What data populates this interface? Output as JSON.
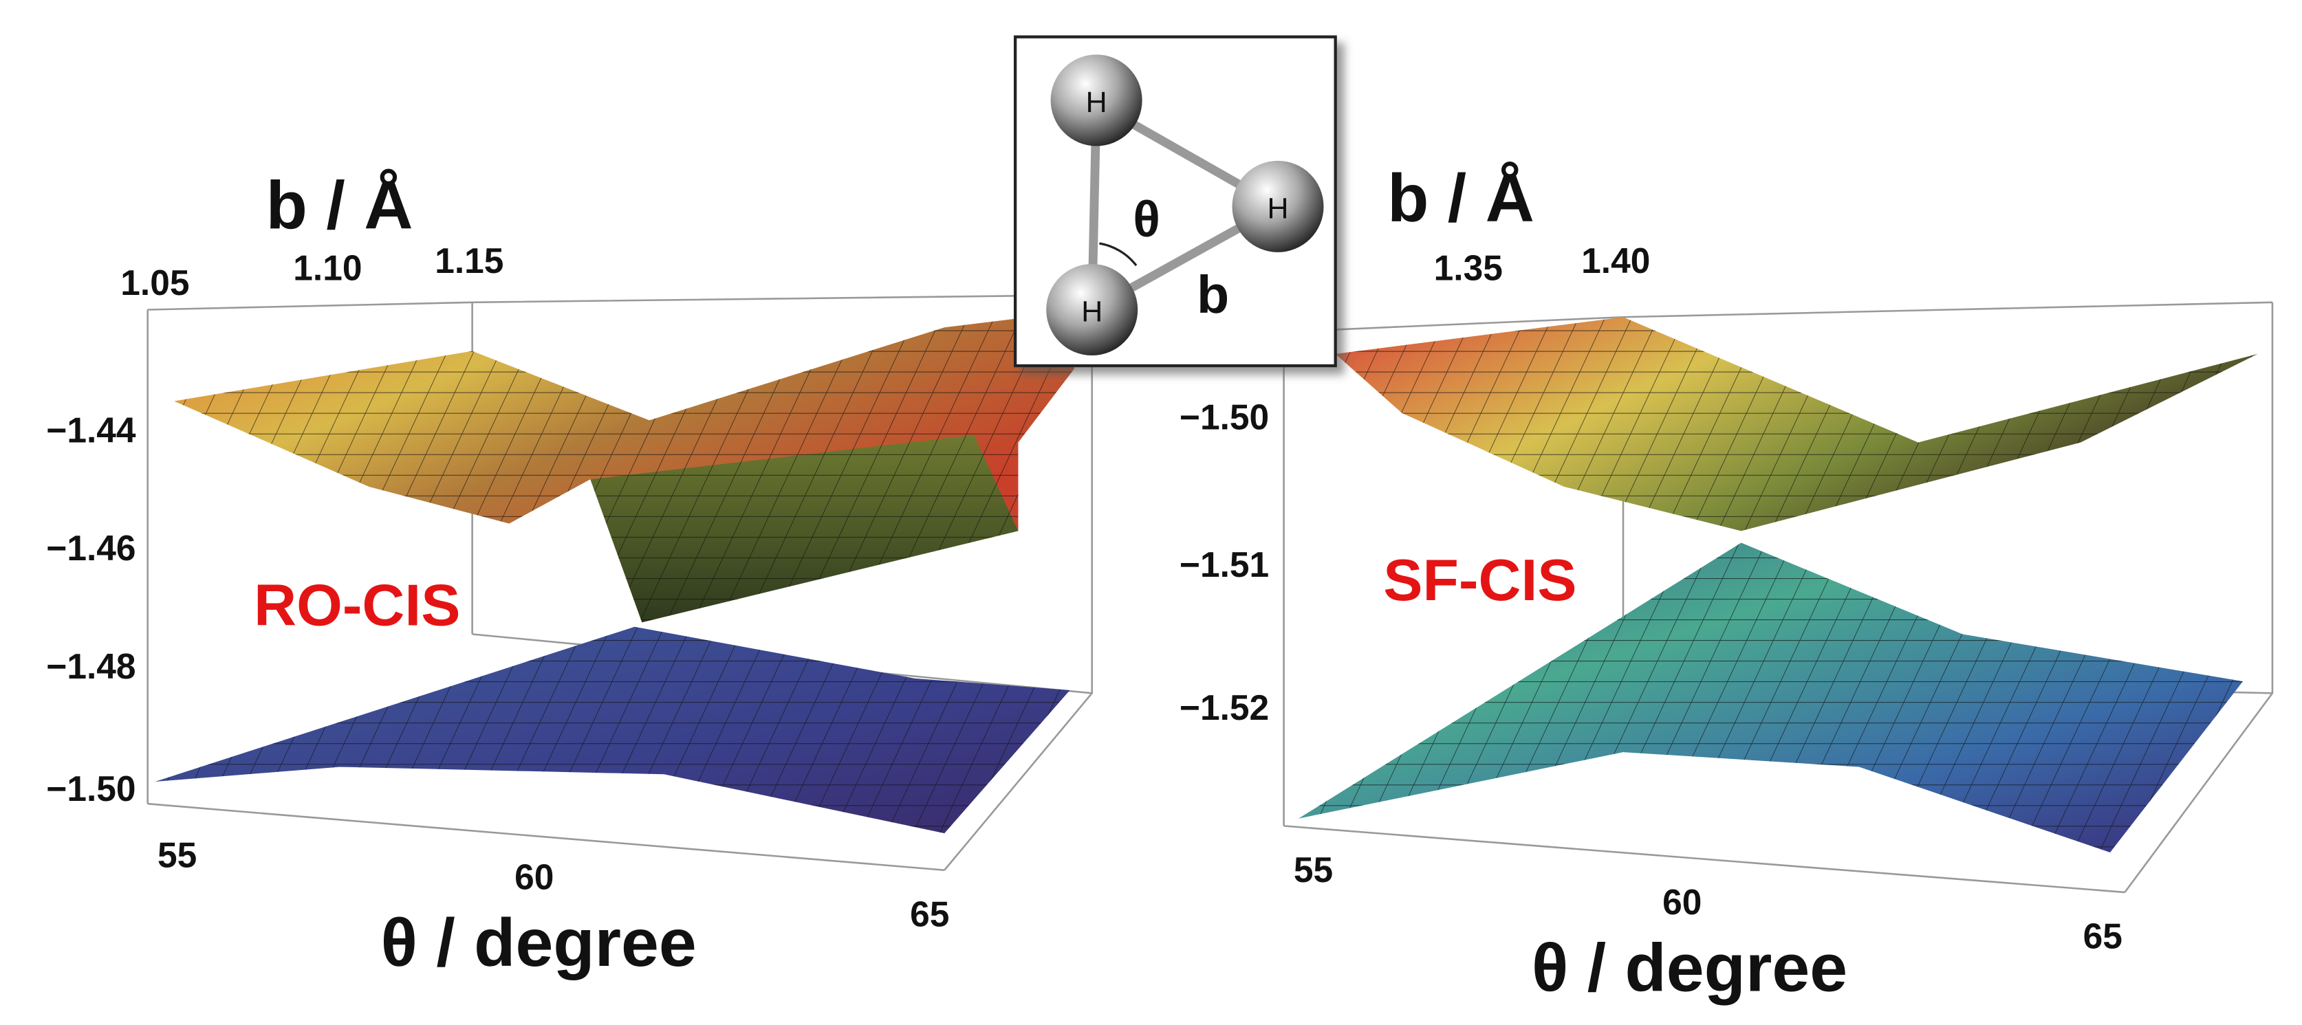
{
  "panels": [
    {
      "method": "RO-CIS",
      "b_axis": {
        "title": "b / Å",
        "ticks": [
          "1.05",
          "1.10",
          "1.15"
        ]
      },
      "energy_ticks": [
        "−1.44",
        "−1.46",
        "−1.48",
        "−1.50"
      ],
      "theta_axis": {
        "title": "θ / degree",
        "ticks": [
          "55",
          "60",
          "65"
        ]
      }
    },
    {
      "method": "SF-CIS",
      "b_axis": {
        "title": "b / Å",
        "ticks": [
          "1.35",
          "1.40"
        ]
      },
      "energy_ticks": [
        "−1.50",
        "−1.51",
        "−1.52"
      ],
      "theta_axis": {
        "title": "θ / degree",
        "ticks": [
          "55",
          "60",
          "65"
        ]
      }
    }
  ],
  "inset": {
    "atoms": [
      "H",
      "H",
      "H"
    ],
    "angle_label": "θ",
    "bond_label": "b"
  }
}
